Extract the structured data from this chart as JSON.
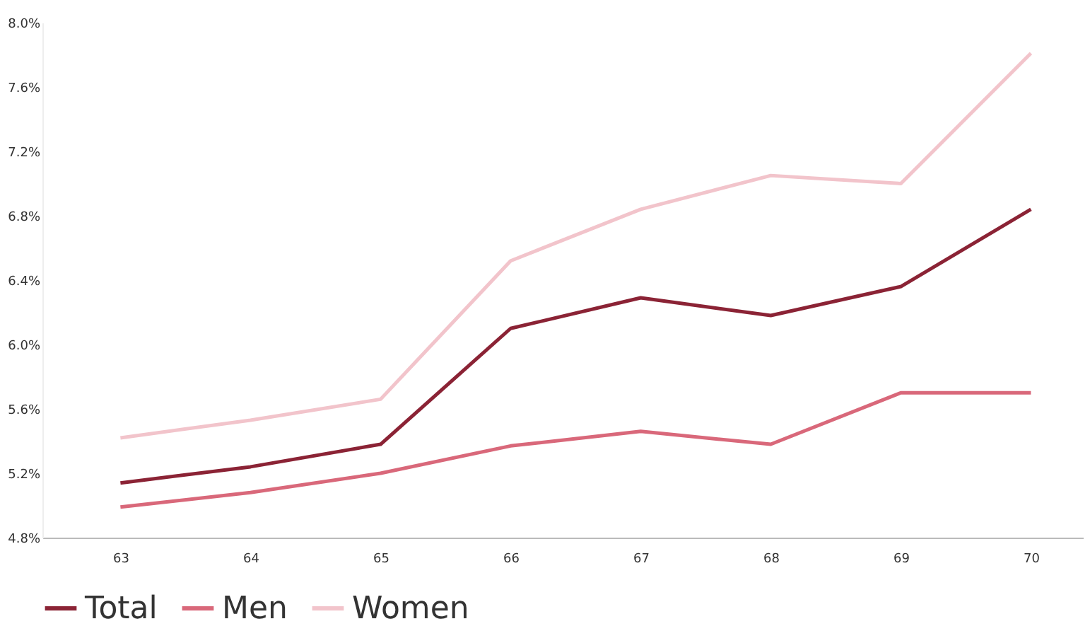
{
  "chart_data": {
    "type": "line",
    "categories": [
      "63",
      "64",
      "65",
      "66",
      "67",
      "68",
      "69",
      "70"
    ],
    "series": [
      {
        "name": "Total",
        "color": "#8b2335",
        "values": [
          5.14,
          5.24,
          5.38,
          6.1,
          6.29,
          6.18,
          6.36,
          6.84
        ]
      },
      {
        "name": "Men",
        "color": "#d9687a",
        "values": [
          4.99,
          5.08,
          5.2,
          5.37,
          5.46,
          5.38,
          5.7,
          5.7
        ]
      },
      {
        "name": "Women",
        "color": "#f2c4cb",
        "values": [
          5.42,
          5.53,
          5.66,
          6.52,
          6.84,
          7.05,
          7.0,
          7.81
        ]
      }
    ],
    "ylim": [
      4.8,
      8.0
    ],
    "yticks": [
      {
        "value": 4.8,
        "label": "4.8%"
      },
      {
        "value": 5.2,
        "label": "5.2%"
      },
      {
        "value": 5.6,
        "label": "5.6%"
      },
      {
        "value": 6.0,
        "label": "6.0%"
      },
      {
        "value": 6.4,
        "label": "6.4%"
      },
      {
        "value": 6.8,
        "label": "6.8%"
      },
      {
        "value": 7.2,
        "label": "7.2%"
      },
      {
        "value": 7.6,
        "label": "7.6%"
      },
      {
        "value": 8.0,
        "label": "8.0%"
      }
    ],
    "grid": false,
    "legend": "bottom",
    "marker": "none",
    "line_style": "solid"
  }
}
